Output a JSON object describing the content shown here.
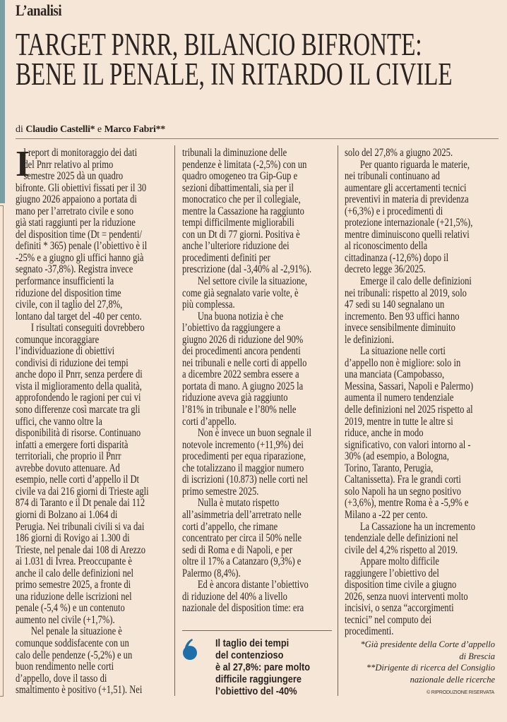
{
  "kicker": "L’analisi",
  "headline": [
    "TARGET PNRR, BILANCIO BIFRONTE:",
    "BENE IL PENALE, IN RITARDO IL CIVILE"
  ],
  "byline": {
    "prefix": "di",
    "author1": "Claudio Castelli*",
    "conj": "e",
    "author2": "Marco Fabri**"
  },
  "dropcap": "I",
  "colors": {
    "accent_blue": "#1f6ea8",
    "sidebar_teal": "#7a9ea3",
    "background": "#f6e6d8"
  },
  "columns": [
    {
      "lines": [
        {
          "t": "l report di monitoraggio dei dati",
          "cap": true
        },
        {
          "t": "del Pnrr relativo al primo",
          "cap": true
        },
        {
          "t": "semestre 2025 dà un quadro",
          "cap": true
        },
        {
          "t": "bifronte. Gli obiettivi fissati per il 30"
        },
        {
          "t": "giugno 2026 appaiono a portata di"
        },
        {
          "t": "mano per l’arretrato civile e sono"
        },
        {
          "t": "già stati raggiunti per la riduzione"
        },
        {
          "t": "del disposition time (Dt = pendenti/"
        },
        {
          "t": "definiti * 365) penale (l’obiettivo è il"
        },
        {
          "t": "-25% e a giugno gli uffici hanno già"
        },
        {
          "t": "segnato -37,8%). Registra invece"
        },
        {
          "t": "performance insufficienti la"
        },
        {
          "t": "riduzione del disposition time"
        },
        {
          "t": "civile, con il taglio del 27,8%,"
        },
        {
          "t": "lontano dal target del -40 per cento."
        },
        {
          "t": "I risultati conseguiti dovrebbero",
          "ind": true
        },
        {
          "t": "comunque incoraggiare"
        },
        {
          "t": "l’individuazione di obiettivi"
        },
        {
          "t": "condivisi di riduzione dei tempi"
        },
        {
          "t": "anche dopo il Pnrr, senza perdere di"
        },
        {
          "t": "vista il miglioramento della qualità,"
        },
        {
          "t": "approfondendo le ragioni per cui vi"
        },
        {
          "t": "sono differenze così marcate tra gli"
        },
        {
          "t": "uffici, che vanno oltre la"
        },
        {
          "t": "disponibilità di risorse. Continuano"
        },
        {
          "t": "infatti a emergere forti disparità"
        },
        {
          "t": "territoriali, che proprio il Pnrr"
        },
        {
          "t": "avrebbe dovuto attenuare. Ad"
        },
        {
          "t": "esempio, nelle corti d’appello il Dt"
        },
        {
          "t": "civile va dai 216 giorni di Trieste agli"
        },
        {
          "t": "874 di Taranto e il Dt penale dai 112"
        },
        {
          "t": "giorni di Bolzano ai 1.064 di"
        },
        {
          "t": "Perugia. Nei tribunali civili si va dai"
        },
        {
          "t": "186 giorni di Rovigo ai 1.300 di"
        },
        {
          "t": "Trieste, nel penale dai 108 di Arezzo"
        },
        {
          "t": "ai 1.031 di Ivrea. Preoccupante è"
        },
        {
          "t": "anche il calo delle definizioni nel"
        },
        {
          "t": "primo semestre 2025, a fronte di"
        },
        {
          "t": "una riduzione delle iscrizioni nel"
        },
        {
          "t": "penale (-5,4 %) e un contenuto"
        },
        {
          "t": "aumento nel civile (+1,7%)."
        },
        {
          "t": "Nel penale la situazione è",
          "ind": true
        },
        {
          "t": "comunque soddisfacente con un"
        },
        {
          "t": "calo delle pendenze (-5,2%) e un"
        },
        {
          "t": "buon rendimento nelle corti"
        },
        {
          "t": "d’appello, dove il tasso di"
        },
        {
          "t": "smaltimento è positivo (+1,51). Nei"
        }
      ]
    },
    {
      "lines": [
        {
          "t": "tribunali la diminuzione delle"
        },
        {
          "t": "pendenze è limitata (-2,5%) con un"
        },
        {
          "t": "quadro omogeneo tra Gip-Gup e"
        },
        {
          "t": "sezioni dibattimentali, sia per il"
        },
        {
          "t": "monocratico che per il collegiale,"
        },
        {
          "t": "mentre la Cassazione ha raggiunto"
        },
        {
          "t": "tempi difficilmente migliorabili"
        },
        {
          "t": "con un Dt di 77 giorni. Positiva è"
        },
        {
          "t": "anche l’ulteriore riduzione dei"
        },
        {
          "t": "procedimenti definiti per"
        },
        {
          "t": "prescrizione (dal -3,40% al -2,91%)."
        },
        {
          "t": "Nel settore civile la situazione,",
          "ind": true
        },
        {
          "t": "come già segnalato varie volte, è"
        },
        {
          "t": "più complessa."
        },
        {
          "t": "Una buona notizia è che",
          "ind": true
        },
        {
          "t": "l’obiettivo da raggiungere a"
        },
        {
          "t": "giugno 2026 di riduzione del 90%"
        },
        {
          "t": "dei procedimenti ancora pendenti"
        },
        {
          "t": "nei tribunali e nelle corti di appello"
        },
        {
          "t": "a dicembre 2022 sembra essere a"
        },
        {
          "t": "portata di mano. A giugno 2025 la"
        },
        {
          "t": "riduzione aveva già raggiunto"
        },
        {
          "t": "l’81% in tribunale e l’80% nelle"
        },
        {
          "t": "corti d’appello."
        },
        {
          "t": "Non è invece un buon segnale il",
          "ind": true
        },
        {
          "t": "notevole incremento (+11,9%) dei"
        },
        {
          "t": "procedimenti per equa riparazione,"
        },
        {
          "t": "che totalizzano il maggior numero"
        },
        {
          "t": "di iscrizioni (10.873) nelle corti nel"
        },
        {
          "t": "primo semestre 2025."
        },
        {
          "t": "Nulla è mutato rispetto",
          "ind": true
        },
        {
          "t": "all’asimmetria dell’arretrato nelle"
        },
        {
          "t": "corti d’appello, che rimane"
        },
        {
          "t": "concentrato per circa il 50% nelle"
        },
        {
          "t": "sedi di Roma e di Napoli, e per"
        },
        {
          "t": "oltre il 17% a Catanzaro (9,3%) e"
        },
        {
          "t": "Palermo (8,4%)."
        },
        {
          "t": "Ed è ancora distante l’obiettivo",
          "ind": true
        },
        {
          "t": "di riduzione del 40% a livello"
        },
        {
          "t": "nazionale del disposition time: era"
        }
      ]
    },
    {
      "lines": [
        {
          "t": "solo del 27,8% a giugno 2025."
        },
        {
          "t": "Per quanto riguarda le materie,",
          "ind": true
        },
        {
          "t": "nei tribunali continuano ad"
        },
        {
          "t": "aumentare gli accertamenti tecnici"
        },
        {
          "t": "preventivi in materia di previdenza"
        },
        {
          "t": "(+6,3%) e i procedimenti di"
        },
        {
          "t": "protezione internazionale (+21,5%),"
        },
        {
          "t": "mentre diminuiscono quelli relativi"
        },
        {
          "t": "al riconoscimento della"
        },
        {
          "t": "cittadinanza (-12,6%) dopo il"
        },
        {
          "t": "decreto legge 36/2025."
        },
        {
          "t": "Emerge il calo delle definizioni",
          "ind": true
        },
        {
          "t": "nei tribunali: rispetto al 2019, solo"
        },
        {
          "t": "47 sedi su 140 segnalano un"
        },
        {
          "t": "incremento. Ben 93 uffici hanno"
        },
        {
          "t": "invece sensibilmente diminuito"
        },
        {
          "t": "le definizioni."
        },
        {
          "t": "La situazione nelle corti",
          "ind": true
        },
        {
          "t": "d’appello non è migliore: solo in"
        },
        {
          "t": "una manciata (Campobasso,"
        },
        {
          "t": "Messina, Sassari, Napoli e Palermo)"
        },
        {
          "t": "aumenta il numero tendenziale"
        },
        {
          "t": "delle definizioni nel 2025 rispetto al"
        },
        {
          "t": "2019, mentre in tutte le altre si"
        },
        {
          "t": "riduce, anche in modo"
        },
        {
          "t": "significativo, con valori intorno al -"
        },
        {
          "t": "30% (ad esempio, a Bologna,"
        },
        {
          "t": "Torino, Taranto, Perugia,"
        },
        {
          "t": "Caltanissetta). Fra le grandi corti"
        },
        {
          "t": "solo Napoli ha un segno positivo"
        },
        {
          "t": "(+3,6%), mentre Roma è a -5,9% e"
        },
        {
          "t": "Milano a -22 per cento."
        },
        {
          "t": "La Cassazione ha un incremento",
          "ind": true
        },
        {
          "t": "tendenziale delle definizioni nel"
        },
        {
          "t": "civile del 4,2% rispetto al 2019."
        },
        {
          "t": "Appare molto difficile",
          "ind": true
        },
        {
          "t": "raggiungere l’obiettivo del"
        },
        {
          "t": "disposition time civile a giugno"
        },
        {
          "t": "2026, senza nuovi interventi molto"
        },
        {
          "t": "incisivi, o senza “accorgimenti"
        },
        {
          "t": "tecnici” nel computo dei"
        },
        {
          "t": "procedimenti."
        }
      ]
    }
  ],
  "pull_quote": {
    "icon": "quote-mark-icon",
    "lines": [
      "Il taglio dei tempi",
      "del contenzioso",
      "è al 27,8%: pare molto",
      "difficile raggiungere",
      "l’obiettivo del -40%"
    ]
  },
  "footnotes": [
    "*Già presidente della Corte d’appello",
    "di Brescia",
    "**Dirigente di ricerca del Consiglio",
    "nazionale delle ricerche"
  ],
  "copyright": "© RIPRODUZIONE RISERVATA"
}
